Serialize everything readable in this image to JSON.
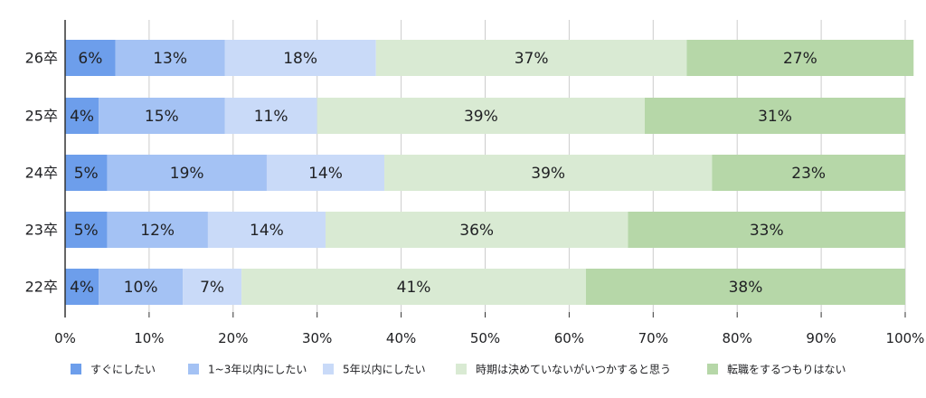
{
  "chart_data": {
    "type": "bar",
    "orientation": "horizontal",
    "stacked": true,
    "categories": [
      "26卒",
      "25卒",
      "24卒",
      "23卒",
      "22卒"
    ],
    "series": [
      {
        "name": "すぐにしたい",
        "color": "#6d9eeb",
        "values": [
          6,
          4,
          5,
          5,
          4
        ]
      },
      {
        "name": "1~3年以内にしたい",
        "color": "#a4c2f4",
        "values": [
          13,
          15,
          19,
          12,
          10
        ]
      },
      {
        "name": "5年以内にしたい",
        "color": "#c9daf8",
        "values": [
          18,
          11,
          14,
          14,
          7
        ]
      },
      {
        "name": "時期は決めていないがいつかすると思う",
        "color": "#d9ead3",
        "values": [
          37,
          39,
          39,
          36,
          41
        ]
      },
      {
        "name": "転職をするつもりはない",
        "color": "#b6d7a8",
        "values": [
          27,
          31,
          23,
          33,
          38
        ]
      }
    ],
    "data_labels": [
      [
        "6%",
        "13%",
        "18%",
        "37%",
        "27%"
      ],
      [
        "4%",
        "15%",
        "11%",
        "39%",
        "31%"
      ],
      [
        "5%",
        "19%",
        "14%",
        "39%",
        "23%"
      ],
      [
        "5%",
        "12%",
        "14%",
        "36%",
        "33%"
      ],
      [
        "4%",
        "10%",
        "7%",
        "41%",
        "38%"
      ]
    ],
    "x_range": [
      0,
      100
    ],
    "x_ticks": [
      0,
      10,
      20,
      30,
      40,
      50,
      60,
      70,
      80,
      90,
      100
    ],
    "x_tick_labels": [
      "0%",
      "10%",
      "20%",
      "30%",
      "40%",
      "50%",
      "60%",
      "70%",
      "80%",
      "90%",
      "100%"
    ],
    "grid": "vertical",
    "legend_position": "bottom",
    "title": "",
    "xlabel": "",
    "ylabel": ""
  }
}
